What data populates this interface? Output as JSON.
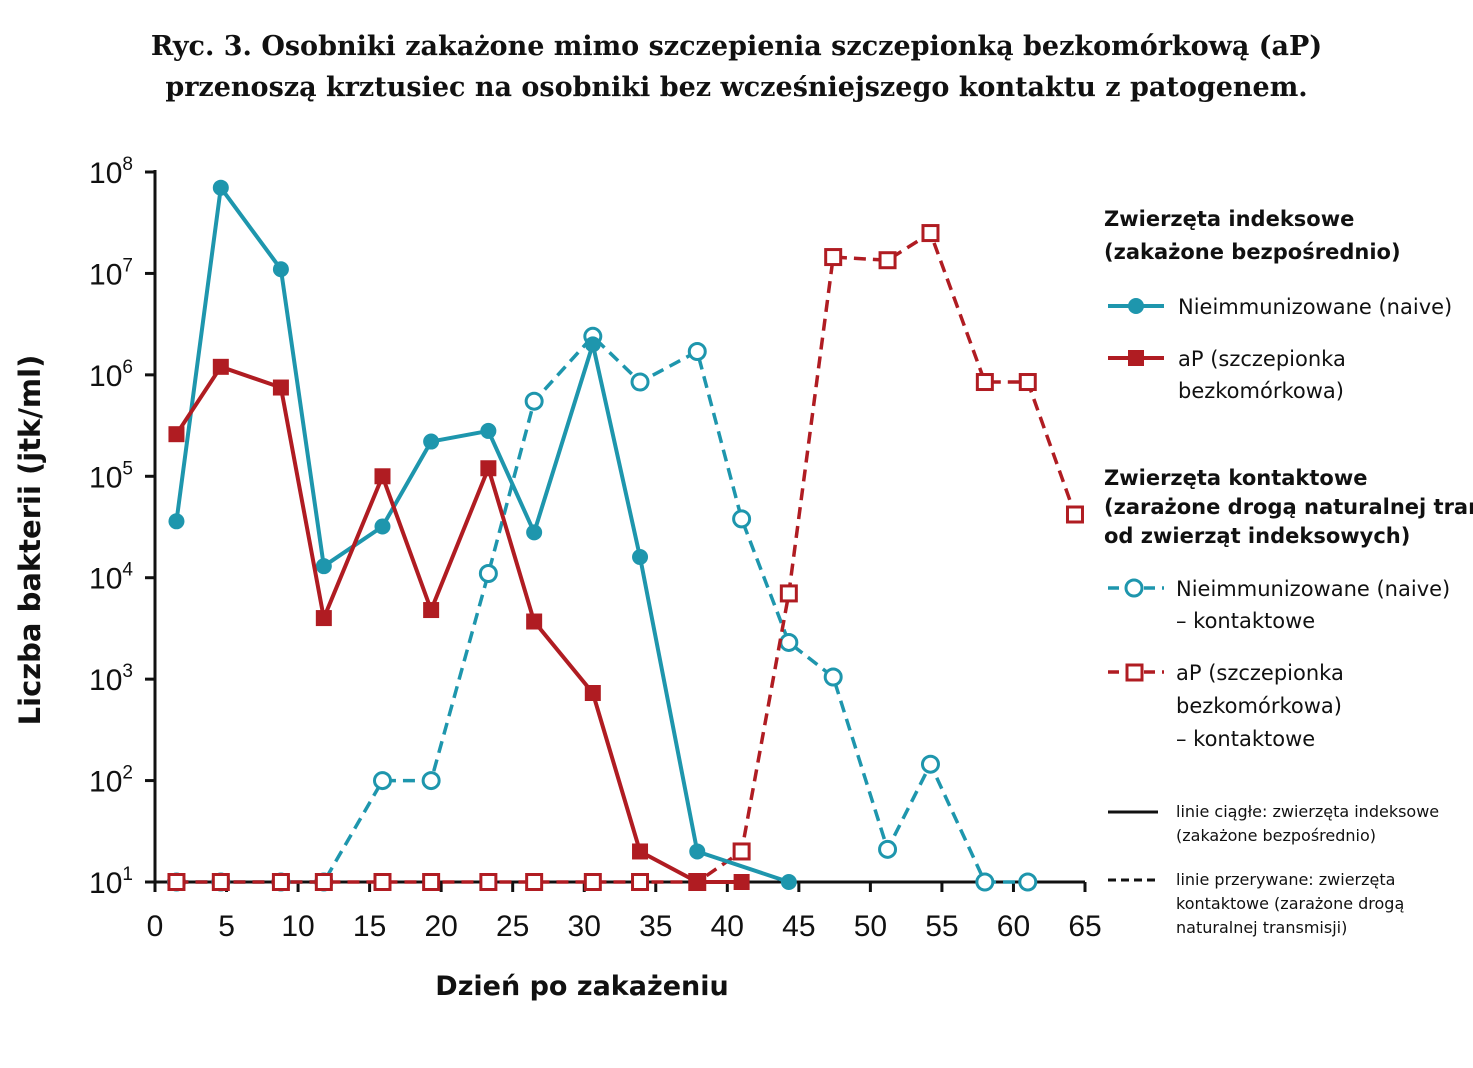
{
  "title": {
    "line1": "Ryc. 3. Osobniki zakażone mimo szczepienia szczepionką bezkomórkową (aP)",
    "line2": "przenoszą krztusiec na osobniki bez wcześniejszego kontaktu z patogenem."
  },
  "chart_data": {
    "type": "line",
    "xlabel": "Dzień po zakażeniu",
    "ylabel": "Liczba bakterii (jtk/ml)",
    "xlim": [
      0,
      65
    ],
    "ylim": [
      10,
      100000000
    ],
    "y_scale": "log",
    "x_ticks": [
      0,
      5,
      10,
      15,
      20,
      25,
      30,
      35,
      40,
      45,
      50,
      55,
      60,
      65
    ],
    "y_ticks": [
      {
        "value": 10,
        "base": "10",
        "exp": "1"
      },
      {
        "value": 100,
        "base": "10",
        "exp": "2"
      },
      {
        "value": 1000,
        "base": "10",
        "exp": "3"
      },
      {
        "value": 10000,
        "base": "10",
        "exp": "4"
      },
      {
        "value": 100000,
        "base": "10",
        "exp": "5"
      },
      {
        "value": 1000000,
        "base": "10",
        "exp": "6"
      },
      {
        "value": 10000000,
        "base": "10",
        "exp": "7"
      },
      {
        "value": 100000000,
        "base": "10",
        "exp": "8"
      }
    ],
    "grid": false,
    "series": [
      {
        "name": "Nieimmunizowane (naive)",
        "color": "#1e96ad",
        "marker": "circle",
        "filled": true,
        "dashed": false,
        "points": [
          [
            1.5,
            36000
          ],
          [
            4.6,
            70000000
          ],
          [
            8.8,
            11000000
          ],
          [
            11.8,
            13000
          ],
          [
            15.9,
            32000
          ],
          [
            19.3,
            220000
          ],
          [
            23.3,
            280000
          ],
          [
            26.5,
            28000
          ],
          [
            30.6,
            2000000
          ],
          [
            33.9,
            16000
          ],
          [
            37.9,
            20
          ],
          [
            44.3,
            10
          ]
        ]
      },
      {
        "name": "aP (szczepionka bezkomórkowa)",
        "color": "#b01c22",
        "marker": "square",
        "filled": true,
        "dashed": false,
        "points": [
          [
            1.5,
            260000
          ],
          [
            4.6,
            1200000
          ],
          [
            8.8,
            750000
          ],
          [
            11.8,
            4000
          ],
          [
            15.9,
            100000
          ],
          [
            19.3,
            4800
          ],
          [
            23.3,
            120000
          ],
          [
            26.5,
            3700
          ],
          [
            30.6,
            730
          ],
          [
            33.9,
            20
          ],
          [
            37.9,
            10
          ],
          [
            41.0,
            10
          ]
        ]
      },
      {
        "name": "Nieimmunizowane (naive) – kontaktowe",
        "color": "#1e96ad",
        "marker": "circle",
        "filled": false,
        "dashed": true,
        "points": [
          [
            1.5,
            10
          ],
          [
            4.6,
            10
          ],
          [
            8.8,
            10
          ],
          [
            11.8,
            10
          ],
          [
            15.9,
            100
          ],
          [
            19.3,
            100
          ],
          [
            23.3,
            11000
          ],
          [
            26.5,
            550000
          ],
          [
            30.6,
            2400000
          ],
          [
            33.9,
            850000
          ],
          [
            37.9,
            1700000
          ],
          [
            41.0,
            38000
          ],
          [
            44.3,
            2300
          ],
          [
            47.4,
            1050
          ],
          [
            51.2,
            21
          ],
          [
            54.2,
            145
          ],
          [
            58.0,
            10
          ],
          [
            61.0,
            10
          ]
        ]
      },
      {
        "name": "aP (szczepionka bezkomórkowa) – kontaktowe",
        "color": "#b01c22",
        "marker": "square",
        "filled": false,
        "dashed": true,
        "points": [
          [
            1.5,
            10
          ],
          [
            4.6,
            10
          ],
          [
            8.8,
            10
          ],
          [
            11.8,
            10
          ],
          [
            15.9,
            10
          ],
          [
            19.3,
            10
          ],
          [
            23.3,
            10
          ],
          [
            26.5,
            10
          ],
          [
            30.6,
            10
          ],
          [
            33.9,
            10
          ],
          [
            37.9,
            10
          ],
          [
            41.0,
            20
          ],
          [
            44.3,
            7000
          ],
          [
            47.4,
            14500000
          ],
          [
            51.2,
            13500000
          ],
          [
            54.2,
            25000000
          ],
          [
            58.0,
            850000
          ],
          [
            61.0,
            850000
          ],
          [
            64.3,
            42000
          ]
        ]
      }
    ]
  },
  "legend": {
    "index_heading_1": "Zwierzęta indeksowe",
    "index_heading_2": "(zakażone bezpośrednio)",
    "index_naive": "Nieimmunizowane (naive)",
    "index_ap_1": "aP (szczepionka",
    "index_ap_2": "bezkomórkowa)",
    "contact_heading_1": "Zwierzęta kontaktowe",
    "contact_heading_2": "(zarażone drogą naturalnej transmisji",
    "contact_heading_3": "od zwierząt indeksowych)",
    "contact_naive_1": "Nieimmunizowane (naive)",
    "contact_naive_2": "– kontaktowe",
    "contact_ap_1": "aP (szczepionka",
    "contact_ap_2": "bezkomórkowa)",
    "contact_ap_3": "– kontaktowe",
    "solid_note_1": "linie ciągłe: zwierzęta indeksowe",
    "solid_note_2": "(zakażone bezpośrednio)",
    "dashed_note_1": "linie przerywane: zwierzęta",
    "dashed_note_2": "kontaktowe (zarażone drogą",
    "dashed_note_3": "naturalnej transmisji)"
  }
}
